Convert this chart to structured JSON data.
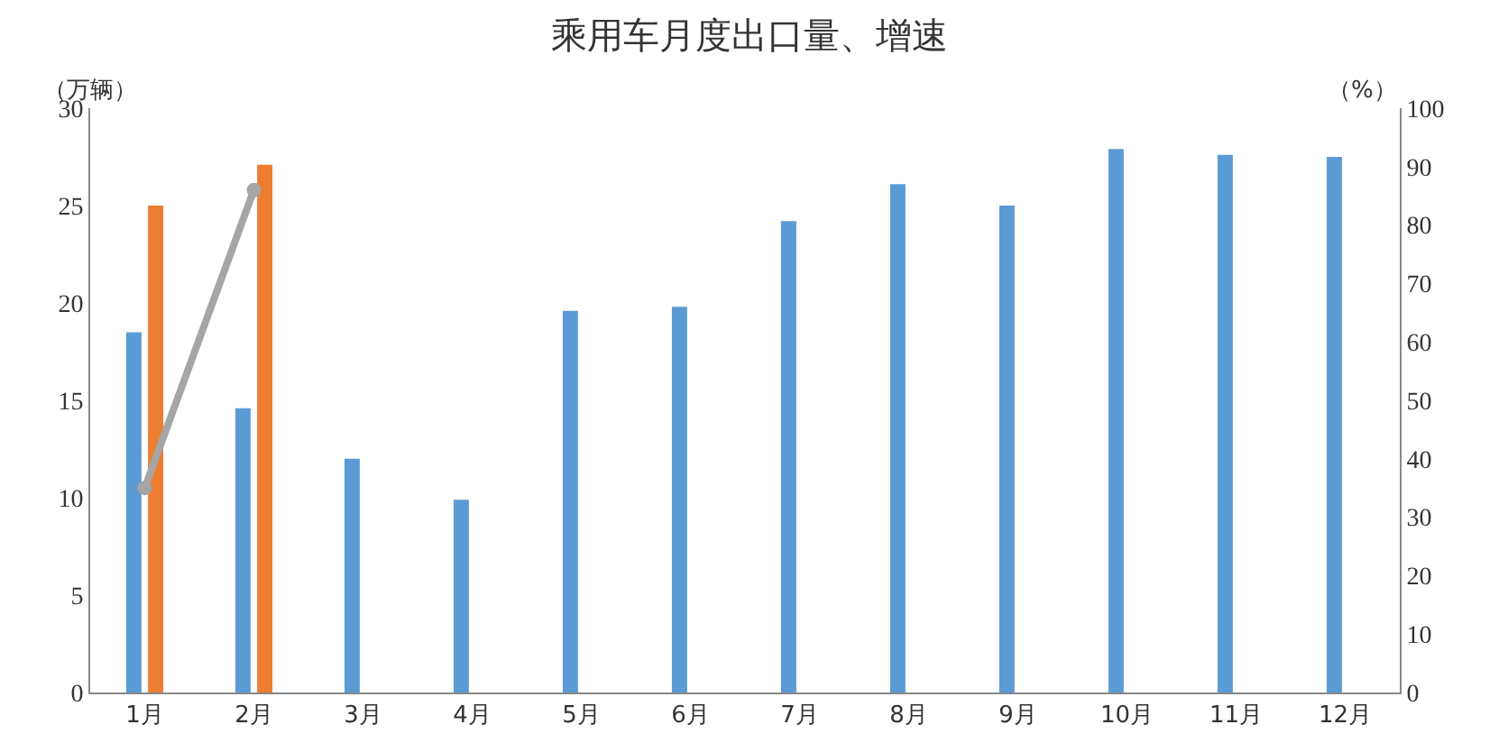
{
  "chart_data": {
    "type": "bar",
    "title": "乘用车月度出口量、增速",
    "ylabel": "（万辆）",
    "y2label": "（%）",
    "categories": [
      "1月",
      "2月",
      "3月",
      "4月",
      "5月",
      "6月",
      "7月",
      "8月",
      "9月",
      "10月",
      "11月",
      "12月"
    ],
    "series": [
      {
        "color": "#5b9bd5",
        "values": [
          18.5,
          14.6,
          12.0,
          9.9,
          19.6,
          19.8,
          24.2,
          26.1,
          25.0,
          27.9,
          27.6,
          27.5
        ]
      },
      {
        "color": "#ed7d31",
        "values": [
          25.0,
          27.1,
          null,
          null,
          null,
          null,
          null,
          null,
          null,
          null,
          null,
          null
        ]
      },
      {
        "type": "line",
        "axis": "y2",
        "color": "#a5a5a5",
        "marker": "circle",
        "line_style": "solid",
        "values": [
          35,
          86,
          null,
          null,
          null,
          null,
          null,
          null,
          null,
          null,
          null,
          null
        ]
      }
    ],
    "ylim": [
      0,
      30
    ],
    "yticks": [
      0,
      5,
      10,
      15,
      20,
      25,
      30
    ],
    "y2lim": [
      0,
      100
    ],
    "y2ticks": [
      0,
      10,
      20,
      30,
      40,
      50,
      60,
      70,
      80,
      90,
      100
    ]
  }
}
